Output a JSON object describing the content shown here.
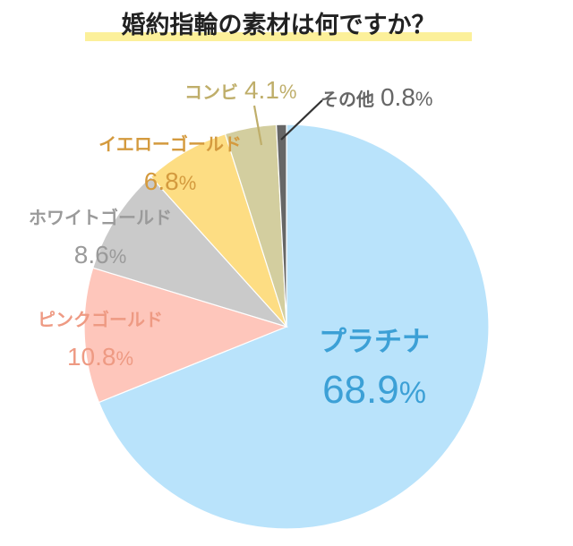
{
  "chart_data": {
    "type": "pie",
    "title": "婚約指輪の素材は何ですか？",
    "unit": "%",
    "slices": [
      {
        "label": "プラチナ",
        "value": 68.9,
        "display": "68.9",
        "color": "#b9e3fb",
        "text_color": "#3ca0d6"
      },
      {
        "label": "ピンクゴールド",
        "value": 10.8,
        "display": "10.8",
        "color": "#fec6bb",
        "text_color": "#ee9a83"
      },
      {
        "label": "ホワイトゴールド",
        "value": 8.6,
        "display": "8.6",
        "color": "#cacaca",
        "text_color": "#9a9a9a"
      },
      {
        "label": "イエローゴールド",
        "value": 6.8,
        "display": "6.8",
        "color": "#fddd83",
        "text_color": "#d49a3e"
      },
      {
        "label": "コンビ",
        "value": 4.1,
        "display": "4.1",
        "color": "#d3ce9f",
        "text_color": "#bfae6a"
      },
      {
        "label": "その他",
        "value": 0.8,
        "display": "0.8",
        "color": "#666666",
        "text_color": "#666666"
      }
    ],
    "title_highlight_color": "#fcf09a",
    "legend": "none"
  }
}
